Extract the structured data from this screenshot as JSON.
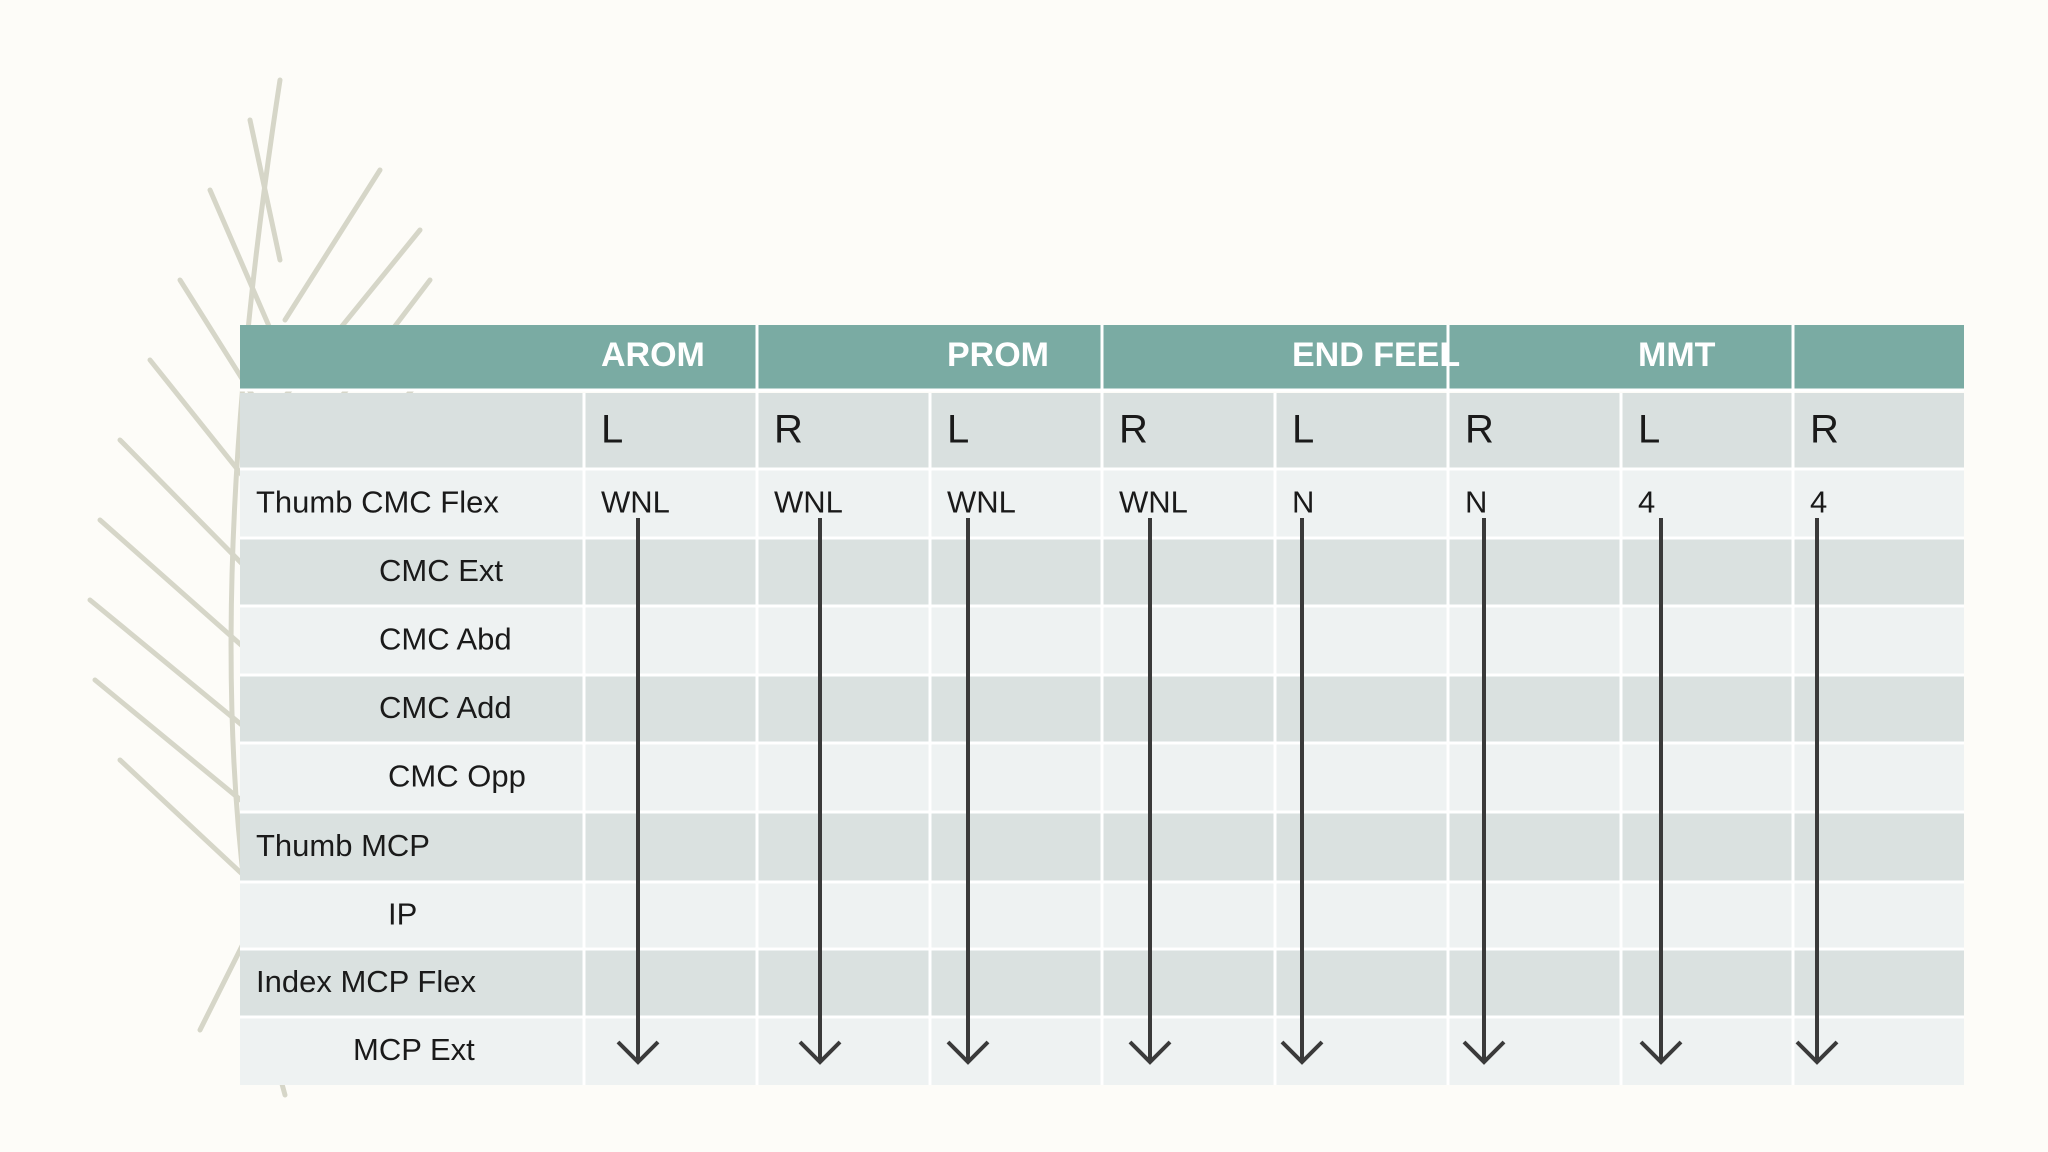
{
  "table": {
    "groups": [
      "AROM",
      "PROM",
      "END FEEL",
      "MMT"
    ],
    "subheaders": [
      "L",
      "R",
      "L",
      "R",
      "L",
      "R",
      "L",
      "R"
    ],
    "rows": [
      {
        "label": "Thumb CMC Flex",
        "values": [
          "WNL",
          "WNL",
          "WNL",
          "WNL",
          "N",
          "N",
          "4",
          "4"
        ]
      },
      {
        "label": "CMC Ext"
      },
      {
        "label": "CMC Abd"
      },
      {
        "label": "CMC Add"
      },
      {
        "label": "CMC Opp"
      },
      {
        "label": "Thumb MCP"
      },
      {
        "label": "IP"
      },
      {
        "label": "Index MCP Flex"
      },
      {
        "label": "MCP Ext"
      }
    ]
  }
}
